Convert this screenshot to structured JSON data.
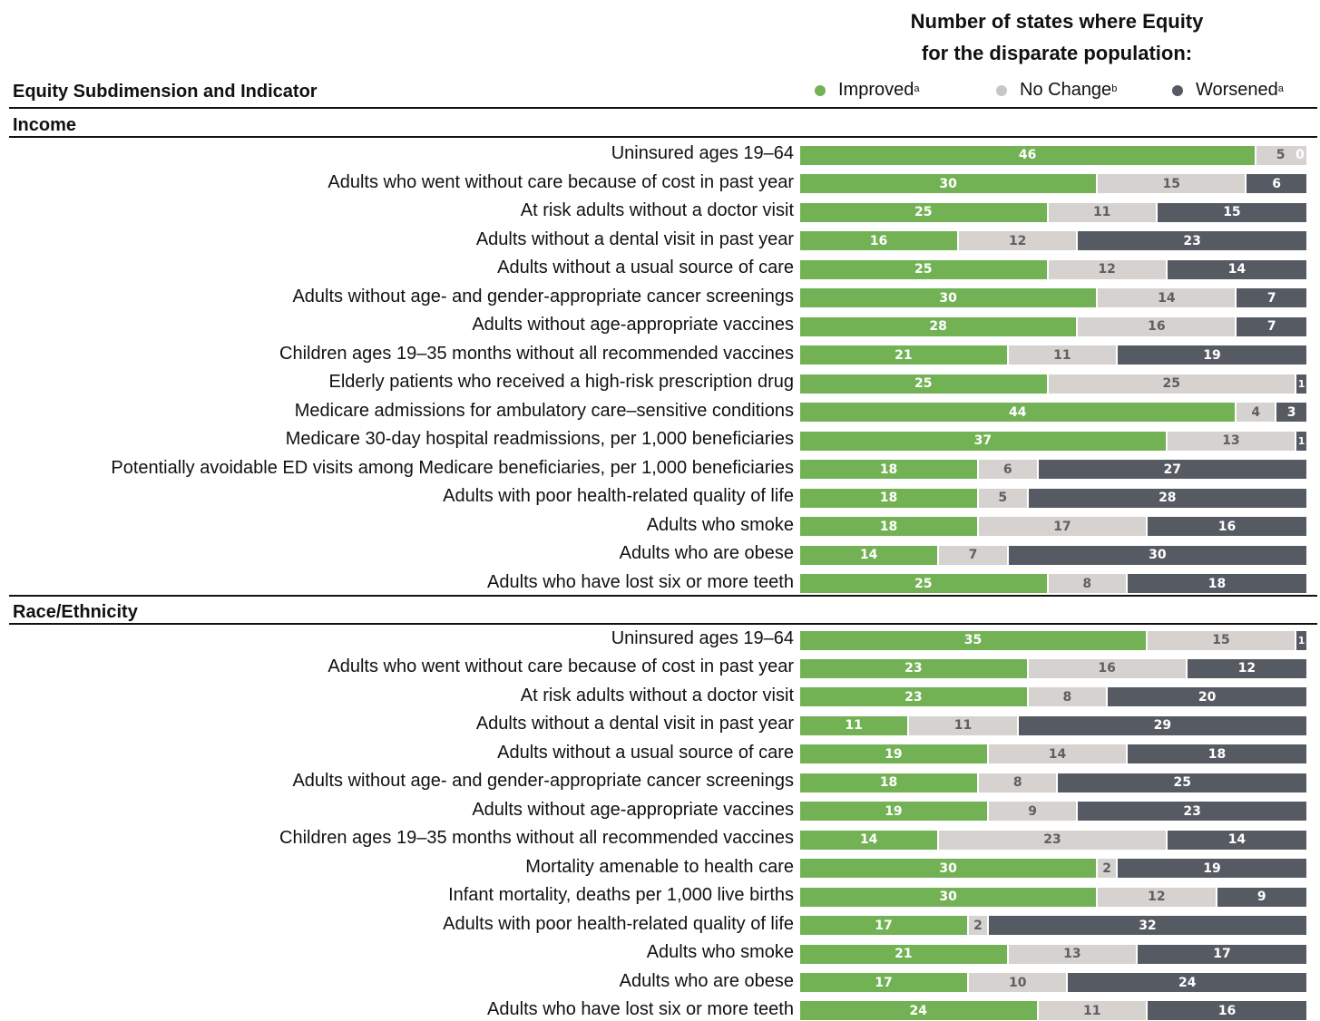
{
  "header": {
    "title_line1": "Number of states where Equity",
    "title_line2": "for the disparate population:",
    "column_heading": "Equity Subdimension and Indicator"
  },
  "legend": {
    "improved": "Improved",
    "improved_sup": "a",
    "no_change": "No Change",
    "no_change_sup": "b",
    "worsened": "Worsened",
    "worsened_sup": "a"
  },
  "colors": {
    "improved": "#72b255",
    "no_change": "#d6d2d0",
    "worsened": "#565a62"
  },
  "chart_data": {
    "type": "bar",
    "orientation": "horizontal",
    "stacked": true,
    "series_names": [
      "Improved",
      "No Change",
      "Worsened"
    ],
    "sections": [
      {
        "name": "Income",
        "rows": [
          {
            "label": "Uninsured ages 19–64",
            "improved": 46,
            "no_change": 5,
            "worsened": 0
          },
          {
            "label": "Adults who went without care because of cost in past year",
            "improved": 30,
            "no_change": 15,
            "worsened": 6
          },
          {
            "label": "At risk adults without a doctor visit",
            "improved": 25,
            "no_change": 11,
            "worsened": 15
          },
          {
            "label": "Adults without a dental visit in past year",
            "improved": 16,
            "no_change": 12,
            "worsened": 23
          },
          {
            "label": "Adults without a usual source of care",
            "improved": 25,
            "no_change": 12,
            "worsened": 14
          },
          {
            "label": "Adults without age- and gender-appropriate cancer screenings",
            "improved": 30,
            "no_change": 14,
            "worsened": 7
          },
          {
            "label": "Adults without age-appropriate vaccines",
            "improved": 28,
            "no_change": 16,
            "worsened": 7
          },
          {
            "label": "Children ages 19–35 months without all recommended vaccines",
            "improved": 21,
            "no_change": 11,
            "worsened": 19
          },
          {
            "label": "Elderly patients who received a high-risk prescription drug",
            "improved": 25,
            "no_change": 25,
            "worsened": 1
          },
          {
            "label": "Medicare admissions for ambulatory care–sensitive conditions",
            "improved": 44,
            "no_change": 4,
            "worsened": 3
          },
          {
            "label": "Medicare 30-day hospital readmissions, per 1,000 beneficiaries",
            "improved": 37,
            "no_change": 13,
            "worsened": 1
          },
          {
            "label": "Potentially avoidable ED visits among Medicare beneficiaries, per 1,000 beneficiaries",
            "improved": 18,
            "no_change": 6,
            "worsened": 27
          },
          {
            "label": "Adults with poor health-related quality of life",
            "improved": 18,
            "no_change": 5,
            "worsened": 28
          },
          {
            "label": "Adults who smoke",
            "improved": 18,
            "no_change": 17,
            "worsened": 16
          },
          {
            "label": "Adults who are obese",
            "improved": 14,
            "no_change": 7,
            "worsened": 30
          },
          {
            "label": "Adults who have lost six or more teeth",
            "improved": 25,
            "no_change": 8,
            "worsened": 18
          }
        ]
      },
      {
        "name": "Race/Ethnicity",
        "rows": [
          {
            "label": "Uninsured ages 19–64",
            "improved": 35,
            "no_change": 15,
            "worsened": 1
          },
          {
            "label": "Adults who went without care because of cost in past year",
            "improved": 23,
            "no_change": 16,
            "worsened": 12
          },
          {
            "label": "At risk adults without a doctor visit",
            "improved": 23,
            "no_change": 8,
            "worsened": 20
          },
          {
            "label": "Adults without a dental visit in past year",
            "improved": 11,
            "no_change": 11,
            "worsened": 29
          },
          {
            "label": "Adults without a usual source of care",
            "improved": 19,
            "no_change": 14,
            "worsened": 18
          },
          {
            "label": "Adults without age- and gender-appropriate cancer screenings",
            "improved": 18,
            "no_change": 8,
            "worsened": 25
          },
          {
            "label": "Adults without age-appropriate vaccines",
            "improved": 19,
            "no_change": 9,
            "worsened": 23
          },
          {
            "label": "Children ages 19–35 months without all recommended vaccines",
            "improved": 14,
            "no_change": 23,
            "worsened": 14
          },
          {
            "label": "Mortality amenable to health care",
            "improved": 30,
            "no_change": 2,
            "worsened": 19
          },
          {
            "label": "Infant mortality, deaths per 1,000 live births",
            "improved": 30,
            "no_change": 12,
            "worsened": 9
          },
          {
            "label": "Adults with poor health-related quality of life",
            "improved": 17,
            "no_change": 2,
            "worsened": 32
          },
          {
            "label": "Adults who smoke",
            "improved": 21,
            "no_change": 13,
            "worsened": 17
          },
          {
            "label": "Adults who are obese",
            "improved": 17,
            "no_change": 10,
            "worsened": 24
          },
          {
            "label": "Adults who have lost six or more teeth",
            "improved": 24,
            "no_change": 11,
            "worsened": 16
          }
        ]
      }
    ]
  }
}
